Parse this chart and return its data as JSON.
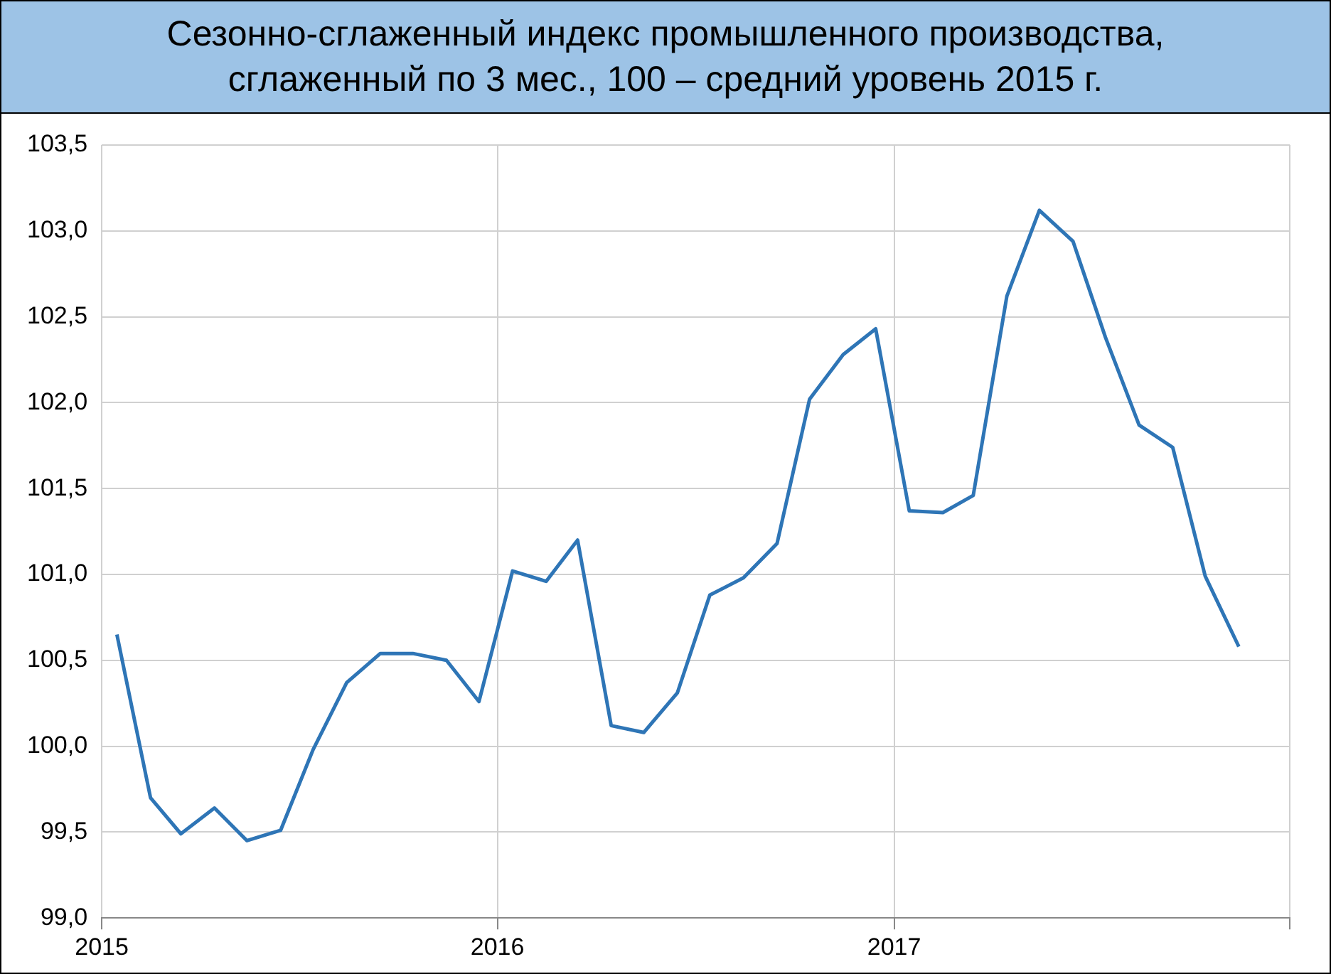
{
  "chart_data": {
    "type": "line",
    "title": "Сезонно-сглаженный индекс промышленного производства, сглаженный по 3 мес., 100 – средний уровень 2015 г.",
    "x": [
      "2015-01-15",
      "2015-02-15",
      "2015-03-15",
      "2015-04-15",
      "2015-05-15",
      "2015-06-15",
      "2015-07-15",
      "2015-08-15",
      "2015-09-15",
      "2015-10-15",
      "2015-11-15",
      "2015-12-15",
      "2016-01-15",
      "2016-02-15",
      "2016-03-15",
      "2016-04-15",
      "2016-05-15",
      "2016-06-15",
      "2016-07-15",
      "2016-08-15",
      "2016-09-15",
      "2016-10-15",
      "2016-11-15",
      "2016-12-15",
      "2017-01-15",
      "2017-02-15",
      "2017-03-15",
      "2017-04-15",
      "2017-05-15",
      "2017-06-15",
      "2017-07-15",
      "2017-08-15",
      "2017-09-15",
      "2017-10-15",
      "2017-11-15"
    ],
    "series": [
      {
        "color": "#2e75b6",
        "values": [
          100.65,
          99.7,
          99.49,
          99.64,
          99.45,
          99.51,
          99.98,
          100.37,
          100.54,
          100.54,
          100.5,
          100.26,
          101.02,
          100.96,
          101.2,
          100.12,
          100.08,
          100.31,
          100.88,
          100.98,
          101.18,
          102.02,
          102.28,
          102.43,
          101.37,
          101.36,
          101.46,
          102.62,
          103.12,
          102.94,
          102.38,
          101.87,
          101.74,
          100.99,
          100.58
        ]
      }
    ],
    "xlim": [
      "2015-01-01",
      "2018-01-01"
    ],
    "xticks": [
      {
        "value": "2015-01-01",
        "label": "2015"
      },
      {
        "value": "2016-01-01",
        "label": "2016"
      },
      {
        "value": "2017-01-01",
        "label": "2017"
      },
      {
        "value": "2018-01-01",
        "label": null
      }
    ],
    "ylim": [
      99,
      103.5
    ],
    "yticks": [
      {
        "value": 99,
        "label": "99,0"
      },
      {
        "value": 99.5,
        "label": "99,5"
      },
      {
        "value": 100,
        "label": "100,0"
      },
      {
        "value": 100.5,
        "label": "100,5"
      },
      {
        "value": 101,
        "label": "101,0"
      },
      {
        "value": 101.5,
        "label": "101,5"
      },
      {
        "value": 102,
        "label": "102,0"
      },
      {
        "value": 102.5,
        "label": "102,5"
      },
      {
        "value": 103,
        "label": "103,0"
      },
      {
        "value": 103.5,
        "label": "103,5"
      }
    ],
    "grid": true,
    "legend": false,
    "marker": "none",
    "line_style": "solid"
  }
}
